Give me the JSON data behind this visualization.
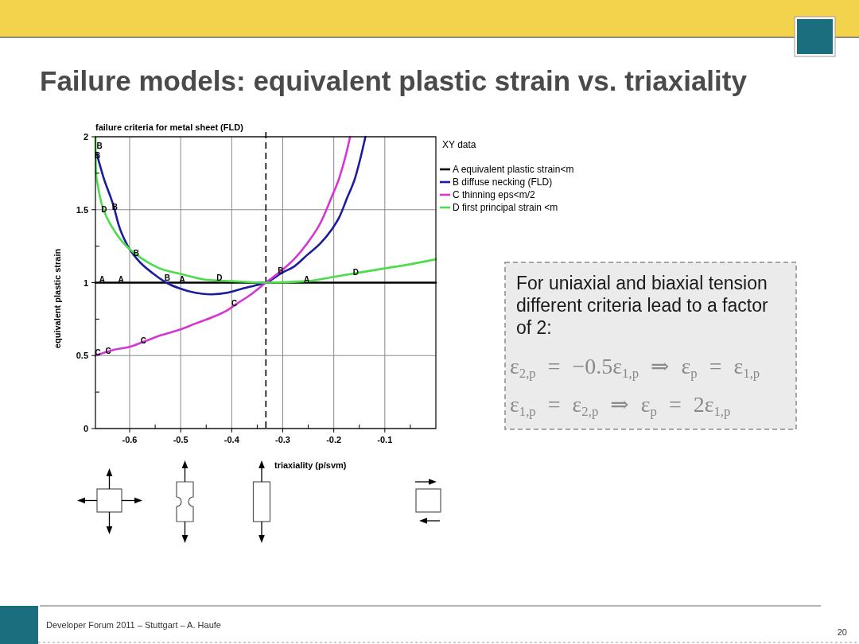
{
  "chart_data": {
    "type": "line",
    "title": "Failure models: equivalent plastic strain vs. triaxiality",
    "subtitle": "failure criteria for metal sheet (FLD)",
    "xlabel": "triaxiality (p/svm)",
    "ylabel": "equivalent plastic strain",
    "legend_title": "XY data",
    "legend": "right",
    "grid": true,
    "line_style": "solid",
    "xlim": [
      -0.667,
      0
    ],
    "xticks": [
      -0.6,
      {
        "value": -0.55,
        "label": null
      },
      -0.5,
      {
        "value": -0.45,
        "label": null
      },
      -0.4,
      {
        "value": -0.35,
        "label": null
      },
      -0.3,
      {
        "value": -0.25,
        "label": null
      },
      -0.2,
      {
        "value": -0.15,
        "label": null
      },
      -0.1,
      {
        "value": -0.05,
        "label": null
      }
    ],
    "ylim": [
      0,
      2
    ],
    "yticks": [
      0,
      {
        "value": 0.25,
        "label": null
      },
      0.5,
      {
        "value": 0.75,
        "label": null
      },
      1,
      {
        "value": 1.25,
        "label": null
      },
      1.5,
      {
        "value": 1.75,
        "label": null
      },
      2
    ],
    "ref_lines": [
      {
        "axis": "x",
        "value": -0.333,
        "line_style": "dashed",
        "color": "#000000"
      }
    ],
    "series": [
      {
        "name": "A equivalent plastic strain<m",
        "color": "#000000",
        "x": [
          -0.667,
          0
        ],
        "values": [
          1,
          1
        ]
      },
      {
        "name": "B diffuse necking (FLD)",
        "color": "#1c1c9c",
        "x": [
          -0.665,
          -0.652,
          -0.631,
          -0.621,
          -0.605,
          -0.585,
          -0.553,
          -0.528,
          -0.502,
          -0.471,
          -0.44,
          -0.409,
          -0.378,
          -0.355,
          -0.333,
          -0.3,
          -0.278,
          -0.252,
          -0.226,
          -0.205,
          -0.189,
          -0.174,
          -0.158,
          -0.148,
          -0.138
        ],
        "values": [
          1.89,
          1.73,
          1.52,
          1.39,
          1.26,
          1.16,
          1.06,
          1.0,
          0.96,
          0.93,
          0.92,
          0.93,
          0.96,
          0.98,
          1.0,
          1.07,
          1.11,
          1.19,
          1.27,
          1.36,
          1.45,
          1.58,
          1.72,
          1.85,
          2.0
        ]
      },
      {
        "name": "C thinning eps<m/2",
        "color": "#d436d4",
        "x": [
          -0.667,
          -0.631,
          -0.6,
          -0.569,
          -0.538,
          -0.5,
          -0.471,
          -0.44,
          -0.409,
          -0.388,
          -0.362,
          -0.333,
          -0.3,
          -0.278,
          -0.252,
          -0.226,
          -0.205,
          -0.189,
          -0.176,
          -0.168
        ],
        "values": [
          0.5,
          0.54,
          0.56,
          0.6,
          0.64,
          0.68,
          0.72,
          0.76,
          0.81,
          0.86,
          0.92,
          1.0,
          1.09,
          1.16,
          1.27,
          1.41,
          1.58,
          1.72,
          1.88,
          2.0
        ]
      },
      {
        "name": "D first principal strain <m",
        "color": "#4cdc4c",
        "x": [
          -0.667,
          -0.666,
          -0.662,
          -0.657,
          -0.649,
          -0.636,
          -0.621,
          -0.6,
          -0.574,
          -0.543,
          -0.5,
          -0.45,
          -0.4,
          -0.333,
          -0.252,
          -0.2,
          -0.148,
          -0.096,
          -0.044,
          0
        ],
        "values": [
          2.0,
          1.76,
          1.66,
          1.57,
          1.48,
          1.39,
          1.31,
          1.23,
          1.16,
          1.1,
          1.06,
          1.02,
          1.01,
          1.0,
          1.01,
          1.04,
          1.07,
          1.1,
          1.13,
          1.16
        ]
      }
    ],
    "annotations": [
      {
        "text": "A",
        "x": -0.654,
        "y": 1.02
      },
      {
        "text": "A",
        "x": -0.617,
        "y": 1.02
      },
      {
        "text": "A",
        "x": -0.497,
        "y": 1.02
      },
      {
        "text": "A",
        "x": -0.253,
        "y": 1.02
      },
      {
        "text": "B",
        "x": -0.659,
        "y": 1.94
      },
      {
        "text": "B",
        "x": -0.663,
        "y": 1.87
      },
      {
        "text": "B",
        "x": -0.629,
        "y": 1.52
      },
      {
        "text": "B",
        "x": -0.587,
        "y": 1.2
      },
      {
        "text": "B",
        "x": -0.526,
        "y": 1.03
      },
      {
        "text": "B",
        "x": -0.304,
        "y": 1.08
      },
      {
        "text": "C",
        "x": -0.662,
        "y": 0.52
      },
      {
        "text": "C",
        "x": -0.642,
        "y": 0.53
      },
      {
        "text": "C",
        "x": -0.573,
        "y": 0.6
      },
      {
        "text": "C",
        "x": -0.395,
        "y": 0.86
      },
      {
        "text": "D",
        "x": -0.65,
        "y": 1.5
      },
      {
        "text": "D",
        "x": -0.424,
        "y": 1.03
      },
      {
        "text": "D",
        "x": -0.157,
        "y": 1.07
      },
      "For uniaxial and biaxial tension different criteria lead to a factor of 2:",
      "ε$_{2,p}$ = −0.5ε$_{1,p}$ ⇒ ε$_{p}$ = ε$_{1,p}$",
      "ε$_{1,p}$ = ε$_{2,p}$ ⇒ ε$_{p}$ = 2ε$_{1,p}$",
      "Developer Forum 2011 – Stuttgart – A. Haufe",
      "20"
    ]
  }
}
